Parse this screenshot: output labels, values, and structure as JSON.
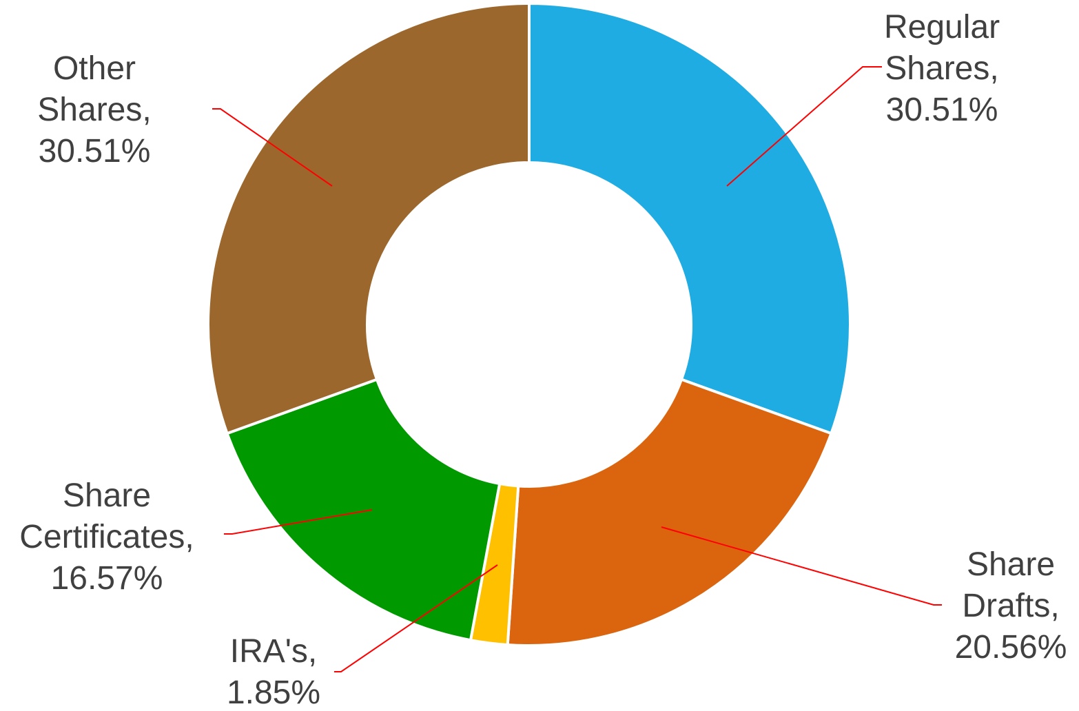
{
  "chart_data": {
    "type": "donut",
    "categories": [
      "Regular Shares,",
      "Share Drafts,",
      "IRA's,",
      "Share Certificates,",
      "Other Shares,"
    ],
    "values": [
      30.51,
      20.56,
      1.85,
      16.57,
      30.51
    ],
    "value_labels": [
      "30.51%",
      "20.56%",
      "1.85%",
      "16.57%",
      "30.51%"
    ],
    "colors": [
      "#1FACE3",
      "#DB650E",
      "#FFC000",
      "#009900",
      "#9C672C"
    ]
  }
}
